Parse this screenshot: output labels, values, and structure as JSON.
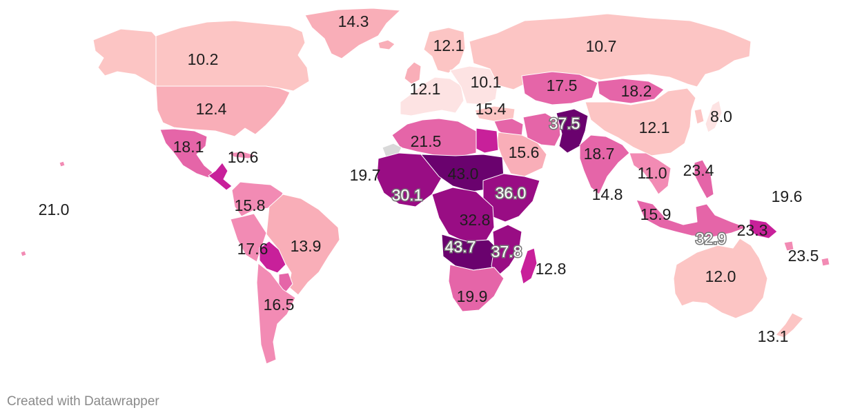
{
  "colors": {
    "c1": "#fde3e3",
    "c2": "#fcc5c4",
    "c3": "#f9aeb8",
    "c4": "#f28bb4",
    "c5": "#e565a8",
    "c6": "#c8209a",
    "c7": "#990d84",
    "c8": "#6a026e",
    "nodata": "#d9d9d9"
  },
  "regions": [
    {
      "id": "greenland",
      "color": "c3"
    },
    {
      "id": "canada",
      "color": "c2"
    },
    {
      "id": "alaska",
      "color": "c2"
    },
    {
      "id": "usa",
      "color": "c3"
    },
    {
      "id": "mexico",
      "color": "c5"
    },
    {
      "id": "central-america",
      "color": "c6"
    },
    {
      "id": "caribbean",
      "color": "c4"
    },
    {
      "id": "colombia-venezuela",
      "color": "c4"
    },
    {
      "id": "brazil",
      "color": "c3"
    },
    {
      "id": "peru",
      "color": "c4"
    },
    {
      "id": "bolivia",
      "color": "c6"
    },
    {
      "id": "paraguay",
      "color": "c5"
    },
    {
      "id": "argentina",
      "color": "c4"
    },
    {
      "id": "scandinavia",
      "color": "c2"
    },
    {
      "id": "uk",
      "color": "c3"
    },
    {
      "id": "iceland",
      "color": "c3"
    },
    {
      "id": "western-europe",
      "color": "c1"
    },
    {
      "id": "eastern-europe",
      "color": "c1"
    },
    {
      "id": "russia",
      "color": "c2"
    },
    {
      "id": "turkey",
      "color": "c2"
    },
    {
      "id": "central-asia",
      "color": "c5"
    },
    {
      "id": "mongolia",
      "color": "c5"
    },
    {
      "id": "china",
      "color": "c2"
    },
    {
      "id": "middle-east",
      "color": "c5"
    },
    {
      "id": "saudi",
      "color": "c3"
    },
    {
      "id": "iran",
      "color": "c5"
    },
    {
      "id": "afghanistan-pakistan",
      "color": "c8"
    },
    {
      "id": "india",
      "color": "c5"
    },
    {
      "id": "southeast-asia",
      "color": "c4"
    },
    {
      "id": "japan",
      "color": "c1"
    },
    {
      "id": "korea",
      "color": "c2"
    },
    {
      "id": "indonesia",
      "color": "c5"
    },
    {
      "id": "philippines",
      "color": "c5"
    },
    {
      "id": "png",
      "color": "c6"
    },
    {
      "id": "australia",
      "color": "c2"
    },
    {
      "id": "new-zealand",
      "color": "c2"
    },
    {
      "id": "north-africa",
      "color": "c5"
    },
    {
      "id": "egypt",
      "color": "c6"
    },
    {
      "id": "western-sahara",
      "color": "nodata"
    },
    {
      "id": "sahel-west",
      "color": "c7"
    },
    {
      "id": "chad-niger",
      "color": "c8"
    },
    {
      "id": "east-africa",
      "color": "c7"
    },
    {
      "id": "central-africa",
      "color": "c7"
    },
    {
      "id": "southern-central",
      "color": "c8"
    },
    {
      "id": "mozambique",
      "color": "c7"
    },
    {
      "id": "southern-africa",
      "color": "c5"
    },
    {
      "id": "madagascar",
      "color": "c6"
    },
    {
      "id": "pacific-islands",
      "color": "c4"
    }
  ],
  "labels": [
    "14.3",
    "10.2",
    "12.1",
    "10.7",
    "12.1",
    "10.1",
    "17.5",
    "18.2",
    "12.4",
    "15.4",
    "37.5",
    "8.0",
    "18.1",
    "21.5",
    "12.1",
    "10.6",
    "15.6",
    "18.7",
    "19.7",
    "43.0",
    "23.4",
    "11.0",
    "21.0",
    "30.1",
    "36.0",
    "14.8",
    "19.6",
    "15.8",
    "32.8",
    "15.9",
    "32.9",
    "23.3",
    "17.6",
    "13.9",
    "43.7",
    "37.8",
    "23.5",
    "12.8",
    "12.0",
    "16.5",
    "19.9",
    "13.1"
  ],
  "footer": {
    "credit": "Created with Datawrapper"
  }
}
